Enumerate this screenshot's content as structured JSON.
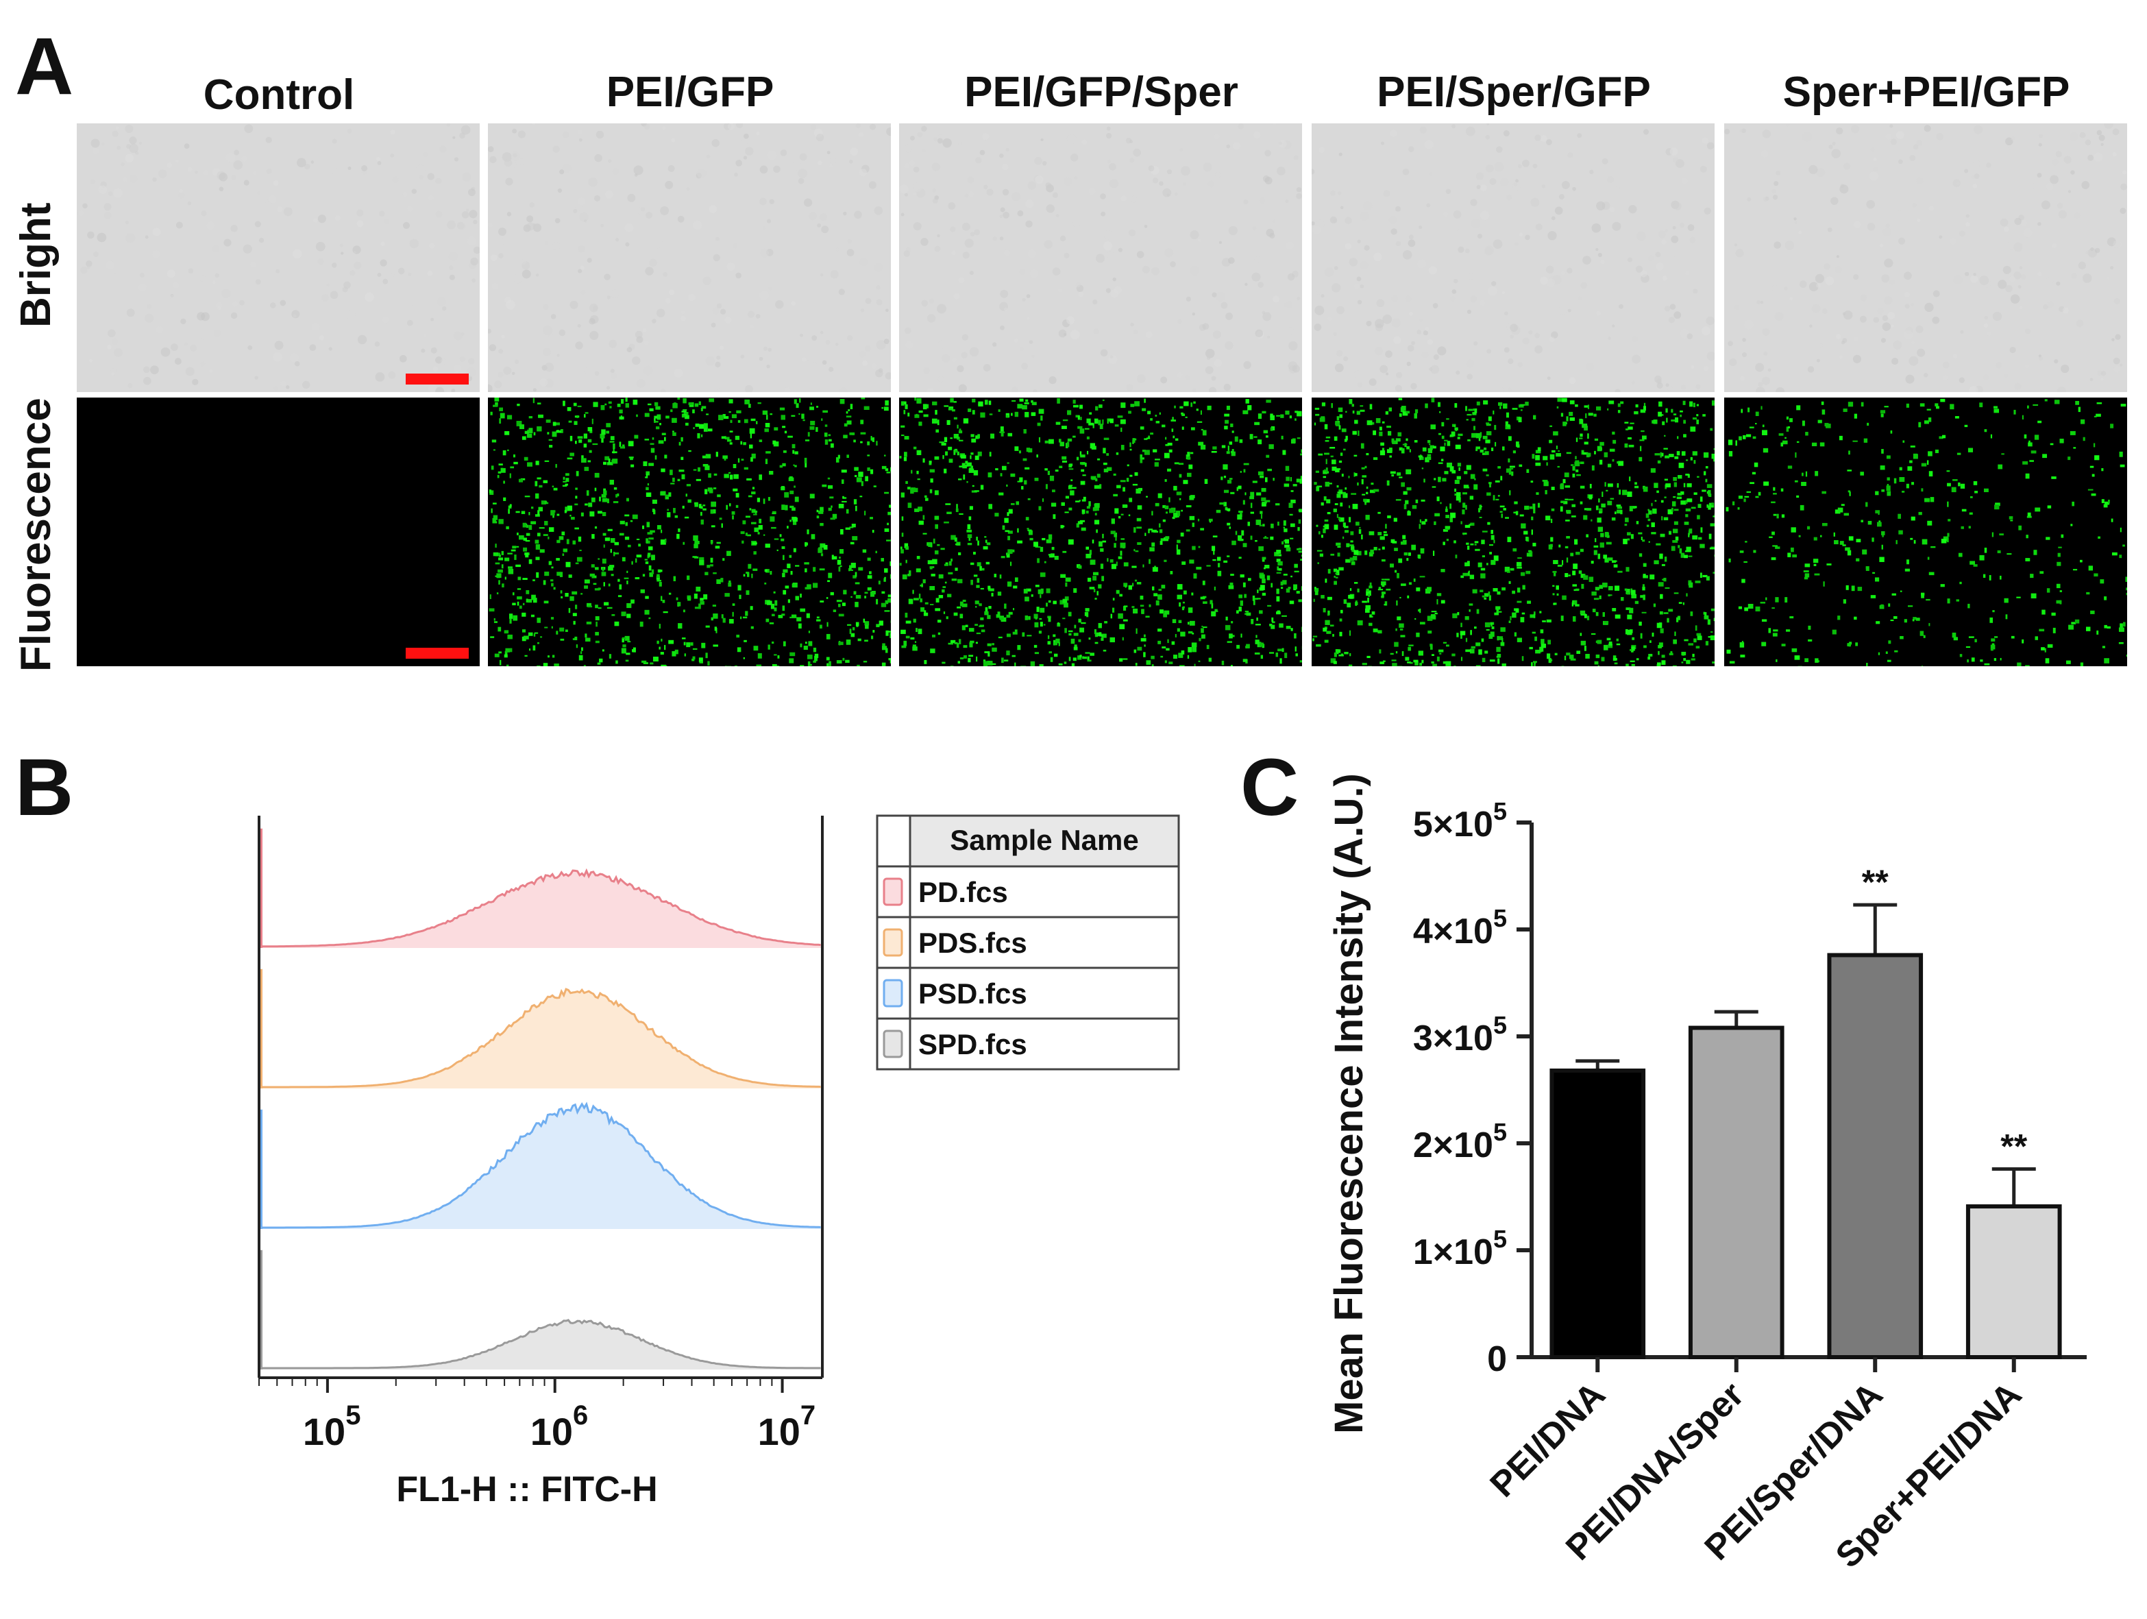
{
  "panels": {
    "a": "A",
    "b": "B",
    "c": "C"
  },
  "panel_a": {
    "columns": [
      "Control",
      "PEI/GFP",
      "PEI/GFP/Sper",
      "PEI/Sper/GFP",
      "Sper+PEI/GFP"
    ],
    "rows": [
      "Bright",
      "Fluorescence"
    ],
    "fluorescence_density": [
      0,
      0.85,
      0.9,
      0.95,
      0.35
    ],
    "bright_bg": "#d9d9d9",
    "fluor_bg": "#000000",
    "fluor_color": "#22dd22",
    "scalebar_color": "#ff1010"
  },
  "chart_data": [
    {
      "type": "histogram",
      "panel": "B",
      "xlabel": "FL1-H :: FITC-H",
      "x_scale": "log",
      "xlim": [
        50000,
        15000000
      ],
      "xticks": [
        {
          "value": 100000,
          "base": "10",
          "exp": "5"
        },
        {
          "value": 1000000,
          "base": "10",
          "exp": "6"
        },
        {
          "value": 10000000,
          "base": "10",
          "exp": "7"
        }
      ],
      "legend": {
        "title": "Sample Name",
        "placement": "right"
      },
      "series": [
        {
          "name": "PD.fcs",
          "color": "#e8808a",
          "fill": "#fbdcdf",
          "peak_log10": 6.1,
          "spread": 0.55,
          "height": 0.55
        },
        {
          "name": "PDS.fcs",
          "color": "#f0b070",
          "fill": "#fde9d4",
          "peak_log10": 6.1,
          "spread": 0.45,
          "height": 0.72
        },
        {
          "name": "PSD.fcs",
          "color": "#70aef0",
          "fill": "#dcebfb",
          "peak_log10": 6.1,
          "spread": 0.45,
          "height": 0.9
        },
        {
          "name": "SPD.fcs",
          "color": "#9a9a9a",
          "fill": "#e6e6e6",
          "peak_log10": 6.1,
          "spread": 0.4,
          "height": 0.35
        }
      ]
    },
    {
      "type": "bar",
      "panel": "C",
      "ylabel": "Mean Fluorescence Intensity (A.U.)",
      "ylim": [
        0,
        500000
      ],
      "yticks": [
        {
          "value": 0,
          "label": "0"
        },
        {
          "value": 100000,
          "label": "1×10",
          "exp": "5"
        },
        {
          "value": 200000,
          "label": "2×10",
          "exp": "5"
        },
        {
          "value": 300000,
          "label": "3×10",
          "exp": "5"
        },
        {
          "value": 400000,
          "label": "4×10",
          "exp": "5"
        },
        {
          "value": 500000,
          "label": "5×10",
          "exp": "5"
        }
      ],
      "categories": [
        "PEI/DNA",
        "PEI/DNA/Sper",
        "PEI/Sper/DNA",
        "Sper+PEI/DNA"
      ],
      "values": [
        268000,
        308000,
        376000,
        141000
      ],
      "errors": [
        9000,
        15000,
        47000,
        35000
      ],
      "colors": [
        "#000000",
        "#a8a8a8",
        "#7a7a7a",
        "#d6d6d6"
      ],
      "annotations": [
        "",
        "",
        "**",
        "**"
      ]
    }
  ]
}
